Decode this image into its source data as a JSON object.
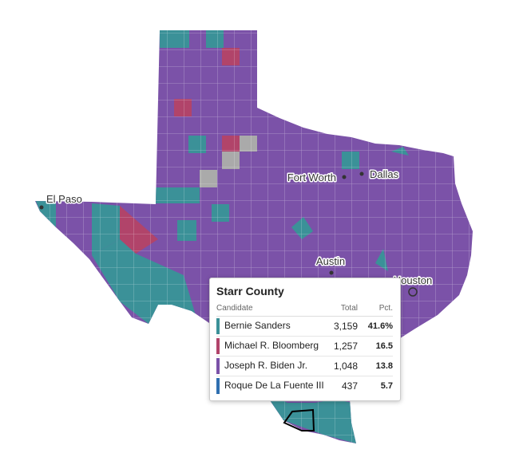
{
  "map": {
    "cities": [
      "El Paso",
      "Fort Worth",
      "Dallas",
      "Austin",
      "Houston"
    ]
  },
  "tooltip": {
    "title": "Starr County",
    "headers": [
      "Candidate",
      "Total",
      "Pct."
    ],
    "rows": [
      {
        "candidate": "Bernie Sanders",
        "total": "3,159",
        "pct": "41.6%",
        "color": "#3b9198"
      },
      {
        "candidate": "Michael R. Bloomberg",
        "total": "1,257",
        "pct": "16.5",
        "color": "#b1446a"
      },
      {
        "candidate": "Joseph R. Biden Jr.",
        "total": "1,048",
        "pct": "13.8",
        "color": "#7b52a8"
      },
      {
        "candidate": "Roque De La Fuente III",
        "total": "437",
        "pct": "5.7",
        "color": "#2f6fb0"
      }
    ]
  }
}
